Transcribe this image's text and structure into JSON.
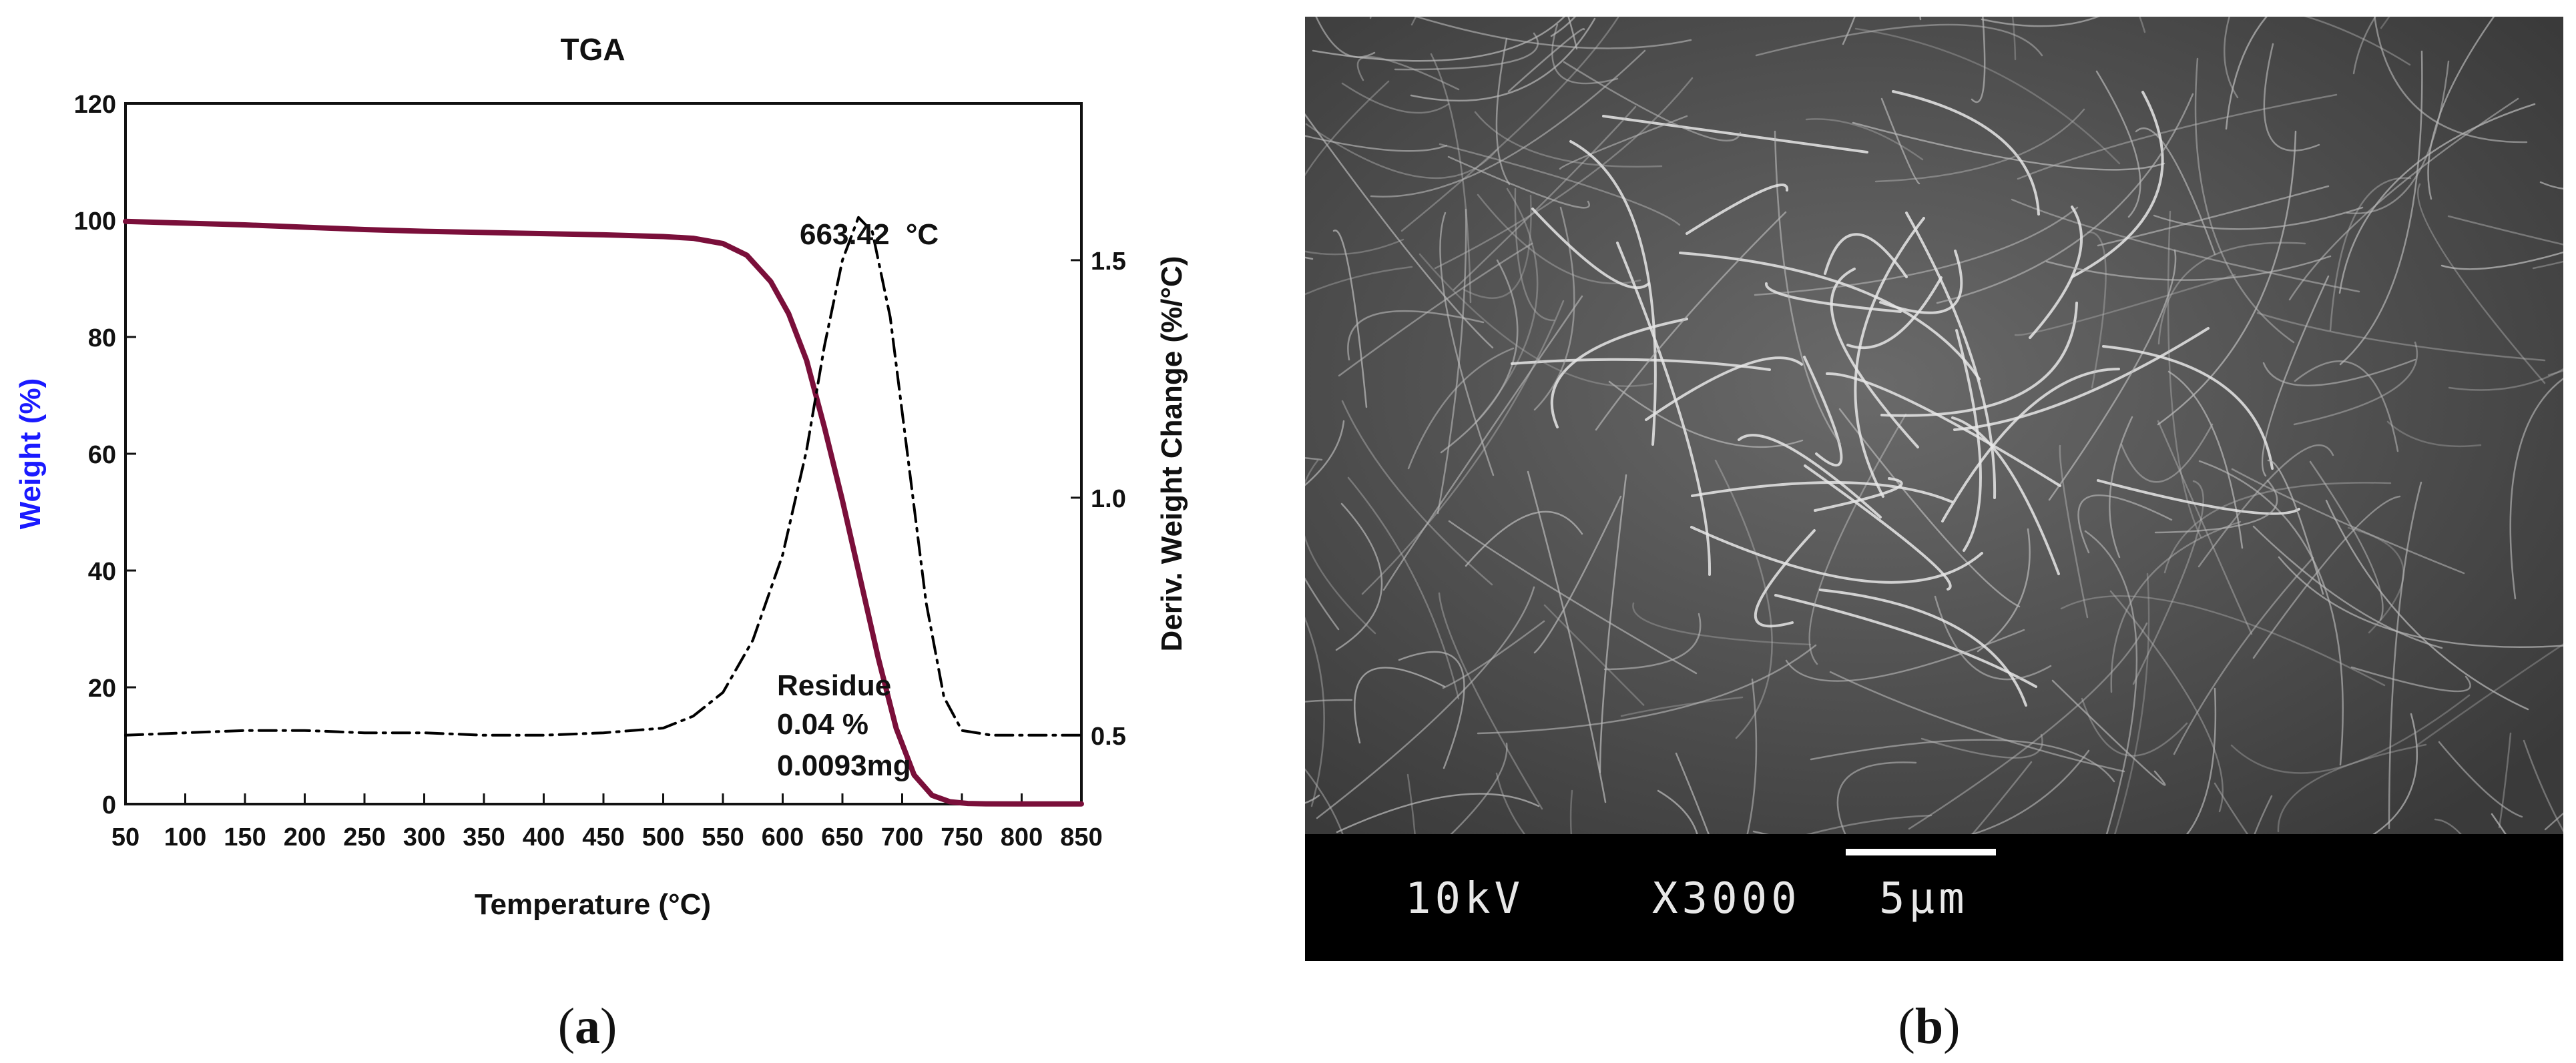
{
  "chart_data": {
    "type": "line",
    "title": "TGA",
    "xlabel": "Temperature (°C)",
    "ylabel": "Weight (%)",
    "y2label": "Deriv. Weight Change (%/°C)",
    "xlim": [
      50,
      850
    ],
    "ylim": [
      0,
      120
    ],
    "y2lim": [
      0.355,
      1.83
    ],
    "x_ticks": [
      50,
      100,
      150,
      200,
      250,
      300,
      350,
      400,
      450,
      500,
      550,
      600,
      650,
      700,
      750,
      800,
      850
    ],
    "y_ticks": [
      0,
      20,
      40,
      60,
      80,
      100,
      120
    ],
    "y2_ticks": [
      0.5,
      1.0,
      1.5
    ],
    "colors": {
      "weight": "#7a0f3a",
      "deriv": "#000000",
      "ylabel": "#1a1aff"
    },
    "grid": false,
    "series": [
      {
        "key": "weight",
        "axis": "left",
        "style": "solid",
        "x": [
          50,
          100,
          150,
          200,
          250,
          300,
          350,
          400,
          450,
          500,
          525,
          550,
          570,
          590,
          605,
          620,
          635,
          650,
          665,
          680,
          695,
          710,
          725,
          740,
          755,
          770,
          800,
          850
        ],
        "y": [
          99.8,
          99.5,
          99.2,
          98.8,
          98.4,
          98.1,
          97.9,
          97.7,
          97.5,
          97.2,
          96.9,
          96.0,
          94.0,
          89.5,
          84.0,
          76.0,
          64.5,
          52.0,
          38.5,
          25.0,
          13.0,
          5.0,
          1.5,
          0.4,
          0.1,
          0.05,
          0.04,
          0.04
        ]
      },
      {
        "key": "deriv",
        "axis": "right",
        "style": "dashdot",
        "x": [
          50,
          100,
          150,
          200,
          250,
          300,
          350,
          400,
          450,
          500,
          525,
          550,
          575,
          600,
          620,
          635,
          650,
          663.42,
          675,
          690,
          705,
          720,
          735,
          750,
          775,
          800,
          850
        ],
        "y": [
          0.5,
          0.505,
          0.51,
          0.51,
          0.505,
          0.505,
          0.5,
          0.5,
          0.505,
          0.515,
          0.54,
          0.59,
          0.7,
          0.88,
          1.1,
          1.32,
          1.5,
          1.59,
          1.56,
          1.38,
          1.08,
          0.78,
          0.58,
          0.51,
          0.5,
          0.5,
          0.5
        ]
      }
    ],
    "annotations": {
      "peak_value": "663.42",
      "peak_unit": "°C",
      "residue_label": "Residue",
      "residue_pct": "0.04 %",
      "residue_mg": "0.0093mg"
    }
  },
  "panels": {
    "a": "a",
    "b": "b"
  },
  "sem": {
    "voltage": "10kV",
    "magnification": "X3000",
    "scale": "5μm"
  }
}
